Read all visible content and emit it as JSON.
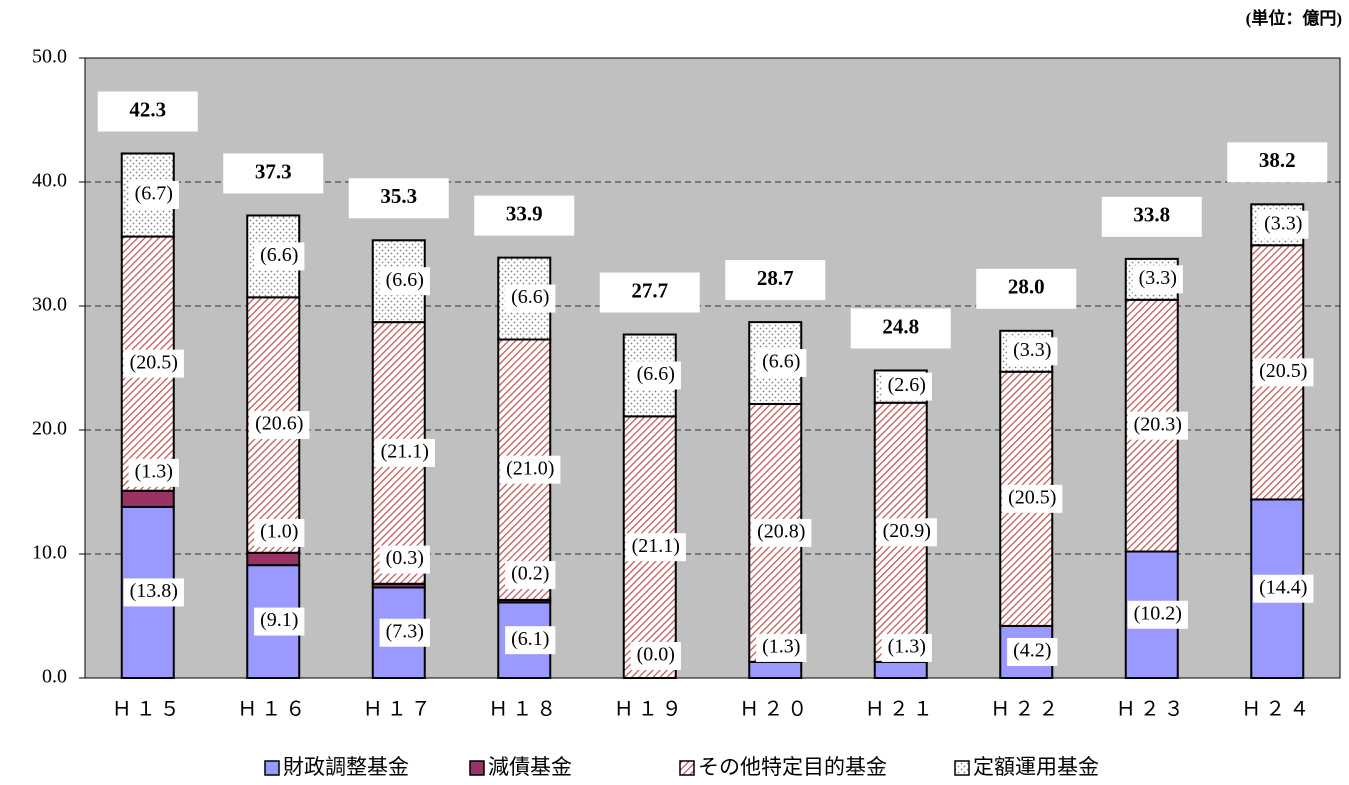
{
  "chart_data": {
    "type": "stacked_bar",
    "unit_label": "(単位：億円)",
    "categories": [
      "Ｈ１５",
      "Ｈ１６",
      "Ｈ１７",
      "Ｈ１８",
      "Ｈ１９",
      "Ｈ２０",
      "Ｈ２１",
      "Ｈ２２",
      "Ｈ２３",
      "Ｈ２４"
    ],
    "series": [
      {
        "name": "財政調整基金",
        "color": "#9999ff",
        "pattern": "solid",
        "values": [
          13.8,
          9.1,
          7.3,
          6.1,
          0.0,
          1.3,
          1.3,
          4.2,
          10.2,
          14.4
        ],
        "value_labels": [
          "(13.8)",
          "(9.1)",
          "(7.3)",
          "(6.1)",
          "(0.0)",
          "(1.3)",
          "(1.3)",
          "(4.2)",
          "(10.2)",
          "(14.4)"
        ]
      },
      {
        "name": "減債基金",
        "color": "#993366",
        "pattern": "solid",
        "values": [
          1.3,
          1.0,
          0.3,
          0.2,
          null,
          null,
          null,
          null,
          null,
          null
        ],
        "value_labels": [
          "(1.3)",
          "(1.0)",
          "(0.3)",
          "(0.2)",
          null,
          null,
          null,
          null,
          null,
          null
        ]
      },
      {
        "name": "その他特定目的基金",
        "color": "#c0504d",
        "pattern": "hatch",
        "values": [
          20.5,
          20.6,
          21.1,
          21.0,
          21.1,
          20.8,
          20.9,
          20.5,
          20.3,
          20.5
        ],
        "value_labels": [
          "(20.5)",
          "(20.6)",
          "(21.1)",
          "(21.0)",
          "(21.1)",
          "(20.8)",
          "(20.9)",
          "(20.5)",
          "(20.3)",
          "(20.5)"
        ]
      },
      {
        "name": "定額運用基金",
        "color": "#808080",
        "pattern": "dots",
        "values": [
          6.7,
          6.6,
          6.6,
          6.6,
          6.6,
          6.6,
          2.6,
          3.3,
          3.3,
          3.3
        ],
        "value_labels": [
          "(6.7)",
          "(6.6)",
          "(6.6)",
          "(6.6)",
          "(6.6)",
          "(6.6)",
          "(2.6)",
          "(3.3)",
          "(3.3)",
          "(3.3)"
        ]
      }
    ],
    "totals": [
      42.3,
      37.3,
      35.3,
      33.9,
      27.7,
      28.7,
      24.8,
      28.0,
      33.8,
      38.2
    ],
    "total_labels": [
      "42.3",
      "37.3",
      "35.3",
      "33.9",
      "27.7",
      "28.7",
      "24.8",
      "28.0",
      "33.8",
      "38.2"
    ],
    "ylim": [
      0,
      50
    ],
    "yticks": [
      {
        "value": 0,
        "label": "0.0"
      },
      {
        "value": 10,
        "label": "10.0"
      },
      {
        "value": 20,
        "label": "20.0"
      },
      {
        "value": 30,
        "label": "30.0"
      },
      {
        "value": 40,
        "label": "40.0"
      },
      {
        "value": 50,
        "label": "50.0"
      }
    ],
    "grid": true,
    "plot_background": "#c0c0c0",
    "legend": "bottom"
  }
}
